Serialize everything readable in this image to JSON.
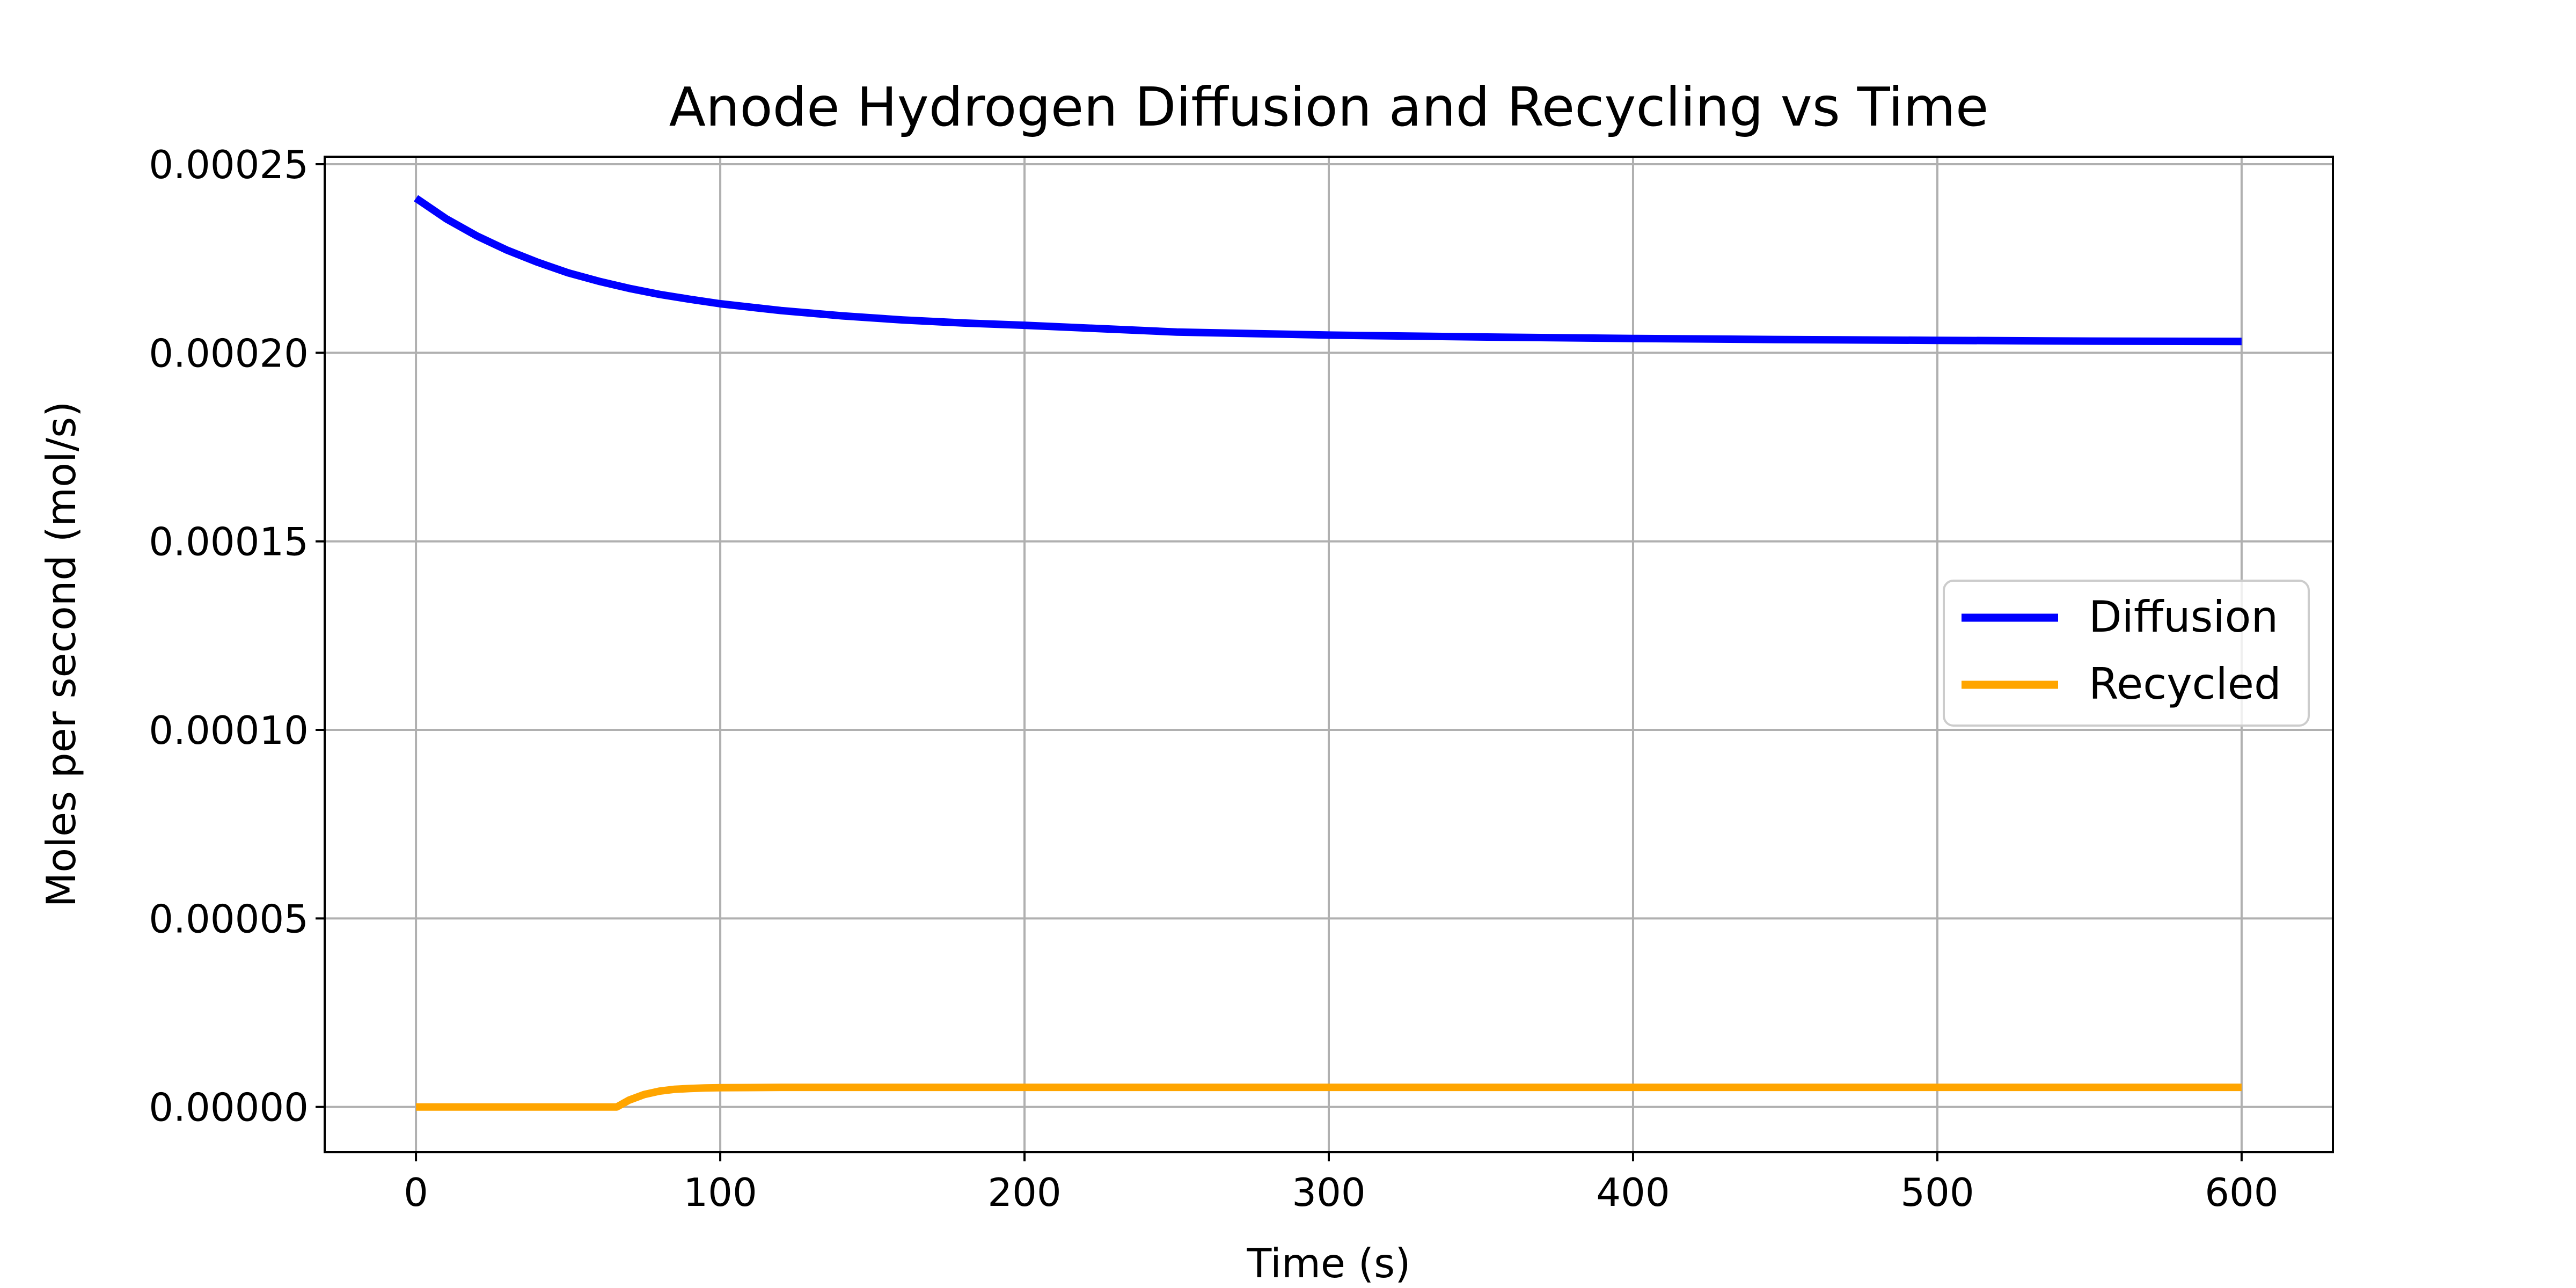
{
  "chart_data": {
    "type": "line",
    "title": "Anode Hydrogen Diffusion and Recycling vs Time",
    "xlabel": "Time (s)",
    "ylabel": "Moles per second (mol/s)",
    "xlim": [
      -30,
      630
    ],
    "ylim": [
      -1.2e-05,
      0.000252
    ],
    "xticks": [
      0,
      100,
      200,
      300,
      400,
      500,
      600
    ],
    "xtick_labels": [
      "0",
      "100",
      "200",
      "300",
      "400",
      "500",
      "600"
    ],
    "yticks": [
      0,
      5e-05,
      0.0001,
      0.00015,
      0.0002,
      0.00025
    ],
    "ytick_labels": [
      "0.00000",
      "0.00005",
      "0.00010",
      "0.00015",
      "0.00020",
      "0.00025"
    ],
    "grid": true,
    "legend_position": "center-right",
    "series": [
      {
        "name": "Diffusion",
        "color": "#0000ff",
        "x": [
          0,
          10,
          20,
          30,
          40,
          50,
          60,
          70,
          80,
          90,
          100,
          120,
          140,
          160,
          180,
          200,
          250,
          300,
          350,
          400,
          450,
          500,
          550,
          600
        ],
        "y": [
          0.000241,
          0.0002355,
          0.000231,
          0.0002272,
          0.000224,
          0.0002212,
          0.000219,
          0.0002171,
          0.0002155,
          0.0002142,
          0.000213,
          0.0002112,
          0.0002098,
          0.0002087,
          0.0002079,
          0.0002073,
          0.0002055,
          0.0002047,
          0.0002042,
          0.0002038,
          0.0002035,
          0.0002033,
          0.0002031,
          0.000203
        ]
      },
      {
        "name": "Recycled",
        "color": "#ffa500",
        "x": [
          0,
          66,
          70,
          75,
          80,
          85,
          90,
          95,
          100,
          120,
          150,
          200,
          300,
          400,
          500,
          600
        ],
        "y": [
          0,
          0,
          1.8e-06,
          3.3e-06,
          4.2e-06,
          4.7e-06,
          4.9e-06,
          5.05e-06,
          5.1e-06,
          5.2e-06,
          5.2e-06,
          5.2e-06,
          5.2e-06,
          5.2e-06,
          5.2e-06,
          5.2e-06
        ]
      }
    ]
  }
}
